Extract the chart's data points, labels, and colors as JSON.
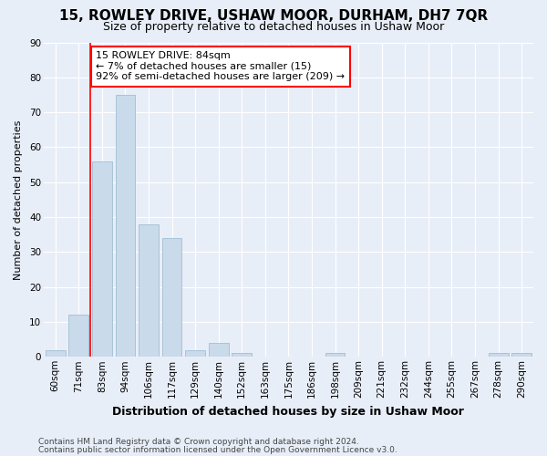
{
  "title1": "15, ROWLEY DRIVE, USHAW MOOR, DURHAM, DH7 7QR",
  "title2": "Size of property relative to detached houses in Ushaw Moor",
  "xlabel": "Distribution of detached houses by size in Ushaw Moor",
  "ylabel": "Number of detached properties",
  "categories": [
    "60sqm",
    "71sqm",
    "83sqm",
    "94sqm",
    "106sqm",
    "117sqm",
    "129sqm",
    "140sqm",
    "152sqm",
    "163sqm",
    "175sqm",
    "186sqm",
    "198sqm",
    "209sqm",
    "221sqm",
    "232sqm",
    "244sqm",
    "255sqm",
    "267sqm",
    "278sqm",
    "290sqm"
  ],
  "values": [
    2,
    12,
    56,
    75,
    38,
    34,
    2,
    4,
    1,
    0,
    0,
    0,
    1,
    0,
    0,
    0,
    0,
    0,
    0,
    1,
    1
  ],
  "bar_color": "#c9daea",
  "bar_edge_color": "#a8c4d8",
  "annotation_text": "15 ROWLEY DRIVE: 84sqm\n← 7% of detached houses are smaller (15)\n92% of semi-detached houses are larger (209) →",
  "annotation_box_color": "white",
  "annotation_box_edge_color": "red",
  "vline_color": "red",
  "vline_x_index": 2,
  "ylim": [
    0,
    90
  ],
  "yticks": [
    0,
    10,
    20,
    30,
    40,
    50,
    60,
    70,
    80,
    90
  ],
  "bg_color": "#e8eef8",
  "plot_bg_color": "#e8eef8",
  "grid_color": "white",
  "title1_fontsize": 11,
  "title2_fontsize": 9,
  "ylabel_fontsize": 8,
  "xlabel_fontsize": 9,
  "tick_fontsize": 7.5,
  "annot_fontsize": 8,
  "footnote1": "Contains HM Land Registry data © Crown copyright and database right 2024.",
  "footnote2": "Contains public sector information licensed under the Open Government Licence v3.0.",
  "footnote_fontsize": 6.5
}
